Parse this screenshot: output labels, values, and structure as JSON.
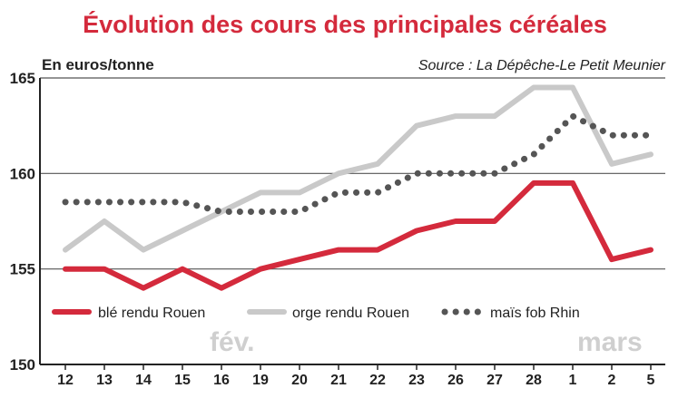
{
  "title": "Évolution des cours des principales céréales",
  "unit_label": "En euros/tonne",
  "source": "Source : La Dépêche-Le Petit Meunier",
  "month_labels": [
    "fév.",
    "mars"
  ],
  "colors": {
    "title": "#d42a3c",
    "ble": "#d42a3c",
    "orge": "#c9c9c9",
    "mais": "#555555",
    "axis": "#222222",
    "grid": "#555555"
  },
  "chart_data": {
    "type": "line",
    "categories": [
      "12",
      "13",
      "14",
      "15",
      "16",
      "19",
      "20",
      "21",
      "22",
      "23",
      "26",
      "27",
      "28",
      "1",
      "2",
      "5"
    ],
    "ylim": [
      150,
      165
    ],
    "yticks": [
      150,
      155,
      160,
      165
    ],
    "grid": true,
    "legend_position": "bottom-left",
    "series": [
      {
        "name": "blé rendu Rouen",
        "style": "solid",
        "values": [
          155,
          155,
          154,
          155,
          154,
          155,
          155.5,
          156,
          156,
          157,
          157.5,
          157.5,
          159.5,
          159.5,
          155.5,
          156
        ]
      },
      {
        "name": "orge rendu Rouen",
        "style": "solid",
        "values": [
          156,
          157.5,
          156,
          157,
          158,
          159,
          159,
          160,
          160.5,
          162.5,
          163,
          163,
          164.5,
          164.5,
          160.5,
          161
        ]
      },
      {
        "name": "maïs fob Rhin",
        "style": "dotted",
        "values": [
          158.5,
          158.5,
          158.5,
          158.5,
          158,
          158,
          158,
          159,
          159,
          160,
          160,
          160,
          161,
          163,
          162,
          162
        ]
      }
    ]
  }
}
